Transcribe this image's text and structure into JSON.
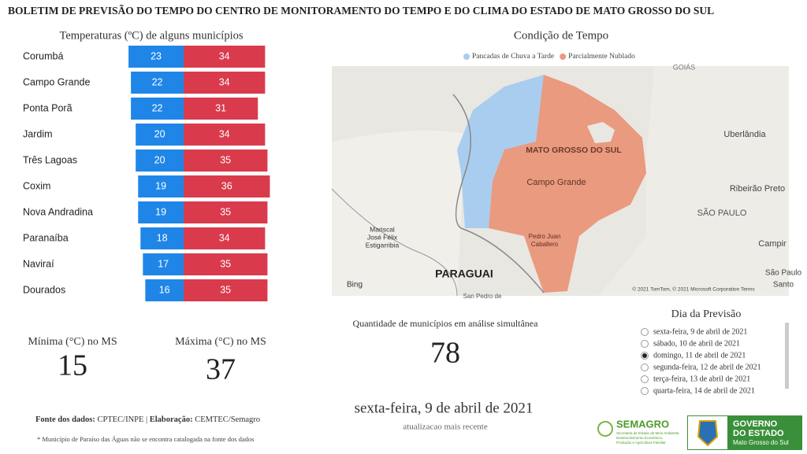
{
  "header": {
    "title": "BOLETIM DE PREVISÃO DO TEMPO DO CENTRO DE MONITORAMENTO DO TEMPO E DO CLIMA DO ESTADO DE MATO GROSSO DO SUL"
  },
  "chart_data": {
    "type": "diverging-bar",
    "title": "Temperaturas (ºC) de alguns municípios",
    "categories": [
      "Corumbá",
      "Campo Grande",
      "Ponta Porã",
      "Jardim",
      "Três Lagoas",
      "Coxim",
      "Nova Andradina",
      "Paranaíba",
      "Naviraí",
      "Dourados"
    ],
    "series": [
      {
        "name": "Mínima",
        "color": "#1f86e8",
        "values": [
          23,
          22,
          22,
          20,
          20,
          19,
          19,
          18,
          17,
          16
        ]
      },
      {
        "name": "Máxima",
        "color": "#d93b4c",
        "values": [
          34,
          34,
          31,
          34,
          35,
          36,
          35,
          34,
          35,
          35
        ]
      }
    ]
  },
  "map": {
    "title": "Condição de Tempo",
    "legend": [
      {
        "label": "Pancadas de Chuva a Tarde",
        "color": "#a9cdef"
      },
      {
        "label": "Parcialmente Nublado",
        "color": "#ea9a7f"
      }
    ],
    "labels": [
      "GOIÁS",
      "Uberlândia",
      "MATO GROSSO DO SUL",
      "Campo Grande",
      "Ribeirão Preto",
      "SÃO PAULO",
      "Mariscal",
      "José Félix",
      "Estigarribia",
      "Pedro Juan",
      "Caballero",
      "Campir",
      "PARAGUAI",
      "São Paulo",
      "Santo",
      "San Pedro de",
      "Bing",
      "© 2021 TomTom, © 2021 Microsoft Corporation  Terms"
    ]
  },
  "stats": {
    "min_label": "Mínima (°C) no MS",
    "min_value": 15,
    "max_label": "Máxima (°C) no MS",
    "max_value": 37,
    "count_label": "Quantidade de municípios em análise simultânea",
    "count_value": 78
  },
  "forecast_day": {
    "title": "Dia da Previsão",
    "options": [
      {
        "label": "sexta-feira, 9 de abril de 2021",
        "selected": false
      },
      {
        "label": "sábado, 10 de abril de 2021",
        "selected": false
      },
      {
        "label": "domingo, 11 de abril de 2021",
        "selected": true
      },
      {
        "label": "segunda-feira, 12 de abril de 2021",
        "selected": false
      },
      {
        "label": "terça-feira, 13 de abril de 2021",
        "selected": false
      },
      {
        "label": "quarta-feira, 14 de abril de 2021",
        "selected": false
      }
    ]
  },
  "update": {
    "date": "sexta-feira, 9 de abril de 2021",
    "caption": "atualizacao mais recente"
  },
  "footer": {
    "source_label": "Fonte dos dados:",
    "source": "CPTEC/INPE | ",
    "made_label": "Elaboração:",
    "made": "CEMTEC/Semagro",
    "note": "* Município de Paraíso das Águas não se encontra catalogada na fonte dos dados"
  },
  "logos": {
    "semagro": "SEMAGRO",
    "semagro_sub": [
      "Secretaria de Estado de Meio Ambiente,",
      "Desenvolvimento Econômico,",
      "Produção e Agricultura Familiar"
    ],
    "gov_line1": "GOVERNO",
    "gov_line2": "DO ESTADO",
    "gov_line3": "Mato Grosso do Sul"
  }
}
